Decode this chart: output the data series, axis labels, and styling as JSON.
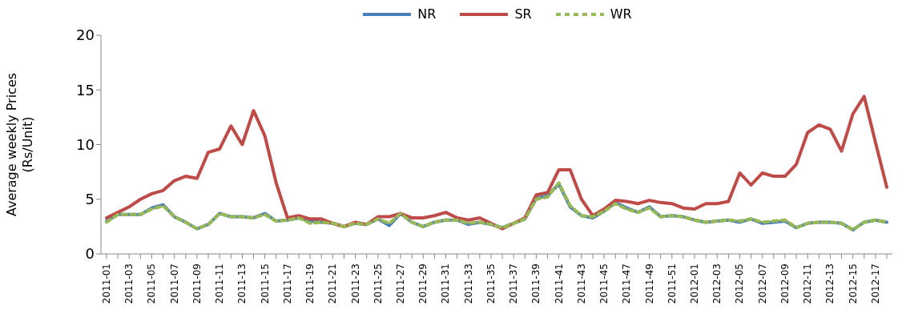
{
  "chart_data": {
    "type": "line",
    "ylabel": "Average weekly Prices\n(Rs/Unit)",
    "categories": [
      "2011-01",
      null,
      "2011-03",
      null,
      "2011-05",
      null,
      "2011-07",
      null,
      "2011-09",
      null,
      "2011-11",
      null,
      "2011-13",
      null,
      "2011-15",
      null,
      "2011-17",
      null,
      "2011-19",
      null,
      "2011-21",
      null,
      "2011-23",
      null,
      "2011-25",
      null,
      "2011-27",
      null,
      "2011-29",
      null,
      "2011-31",
      null,
      "2011-33",
      null,
      "2011-35",
      null,
      "2011-37",
      null,
      "2011-39",
      null,
      "2011-41",
      null,
      "2011-43",
      null,
      "2011-45",
      null,
      "2011-47",
      null,
      "2011-49",
      null,
      "2011-51",
      null,
      "2012-01",
      null,
      "2012-03",
      null,
      "2012-05",
      null,
      "2012-07",
      null,
      "2012-09",
      null,
      "2012-11",
      null,
      "2012-13",
      null,
      "2012-15",
      null,
      "2012-17",
      null
    ],
    "series": [
      {
        "name": "NR",
        "color": "#4a7ebb",
        "line_style": "solid",
        "values": [
          3.0,
          3.6,
          3.6,
          3.6,
          4.2,
          4.5,
          3.4,
          2.9,
          2.3,
          2.7,
          3.7,
          3.4,
          3.4,
          3.3,
          3.7,
          3.0,
          3.1,
          3.3,
          3.0,
          2.9,
          2.8,
          2.5,
          2.8,
          2.7,
          3.2,
          2.6,
          3.7,
          2.9,
          2.5,
          2.9,
          3.1,
          3.1,
          2.7,
          2.9,
          2.7,
          2.4,
          2.8,
          3.2,
          5.1,
          5.3,
          6.4,
          4.3,
          3.5,
          3.3,
          3.9,
          4.7,
          4.2,
          3.8,
          4.3,
          3.4,
          3.5,
          3.4,
          3.1,
          2.9,
          3.0,
          3.1,
          2.9,
          3.2,
          2.8,
          2.9,
          3.0,
          2.4,
          2.8,
          2.9,
          2.9,
          2.8,
          2.2,
          2.9,
          3.1,
          2.9
        ]
      },
      {
        "name": "SR",
        "color": "#be4b48",
        "line_style": "solid",
        "values": [
          3.3,
          3.8,
          4.3,
          5.0,
          5.5,
          5.8,
          6.7,
          7.1,
          6.9,
          9.3,
          9.6,
          11.7,
          10.0,
          13.1,
          10.8,
          6.5,
          3.3,
          3.5,
          3.2,
          3.2,
          2.8,
          2.5,
          2.9,
          2.7,
          3.4,
          3.4,
          3.7,
          3.3,
          3.3,
          3.5,
          3.8,
          3.3,
          3.1,
          3.3,
          2.8,
          2.3,
          2.8,
          3.3,
          5.4,
          5.6,
          7.7,
          7.7,
          5.0,
          3.5,
          4.1,
          4.9,
          4.8,
          4.6,
          4.9,
          4.7,
          4.6,
          4.2,
          4.1,
          4.6,
          4.6,
          4.8,
          7.4,
          6.3,
          7.4,
          7.1,
          7.1,
          8.2,
          11.1,
          11.8,
          11.4,
          9.4,
          12.8,
          14.4,
          10.2,
          6.1
        ]
      },
      {
        "name": "WR",
        "color": "#98b954",
        "line_style": "dashed",
        "values": [
          2.9,
          3.6,
          3.6,
          3.6,
          4.1,
          4.4,
          3.4,
          2.9,
          2.3,
          2.7,
          3.7,
          3.4,
          3.4,
          3.3,
          3.6,
          3.0,
          3.1,
          3.3,
          2.8,
          2.9,
          2.8,
          2.5,
          2.8,
          2.7,
          3.2,
          2.8,
          3.7,
          2.9,
          2.5,
          2.9,
          3.1,
          3.1,
          2.8,
          2.9,
          2.7,
          2.4,
          2.8,
          3.2,
          5.0,
          5.2,
          6.5,
          4.4,
          3.5,
          3.4,
          3.9,
          4.6,
          4.1,
          3.8,
          4.2,
          3.4,
          3.5,
          3.4,
          3.1,
          2.9,
          3.0,
          3.1,
          3.0,
          3.2,
          2.9,
          3.0,
          3.1,
          2.4,
          2.8,
          2.9,
          2.9,
          2.8,
          2.2,
          2.9,
          3.1,
          2.9
        ]
      }
    ],
    "ylim": [
      0,
      20
    ],
    "yticks": [
      0,
      5,
      10,
      15,
      20
    ],
    "grid": false,
    "legend": "top",
    "marker": "none"
  }
}
